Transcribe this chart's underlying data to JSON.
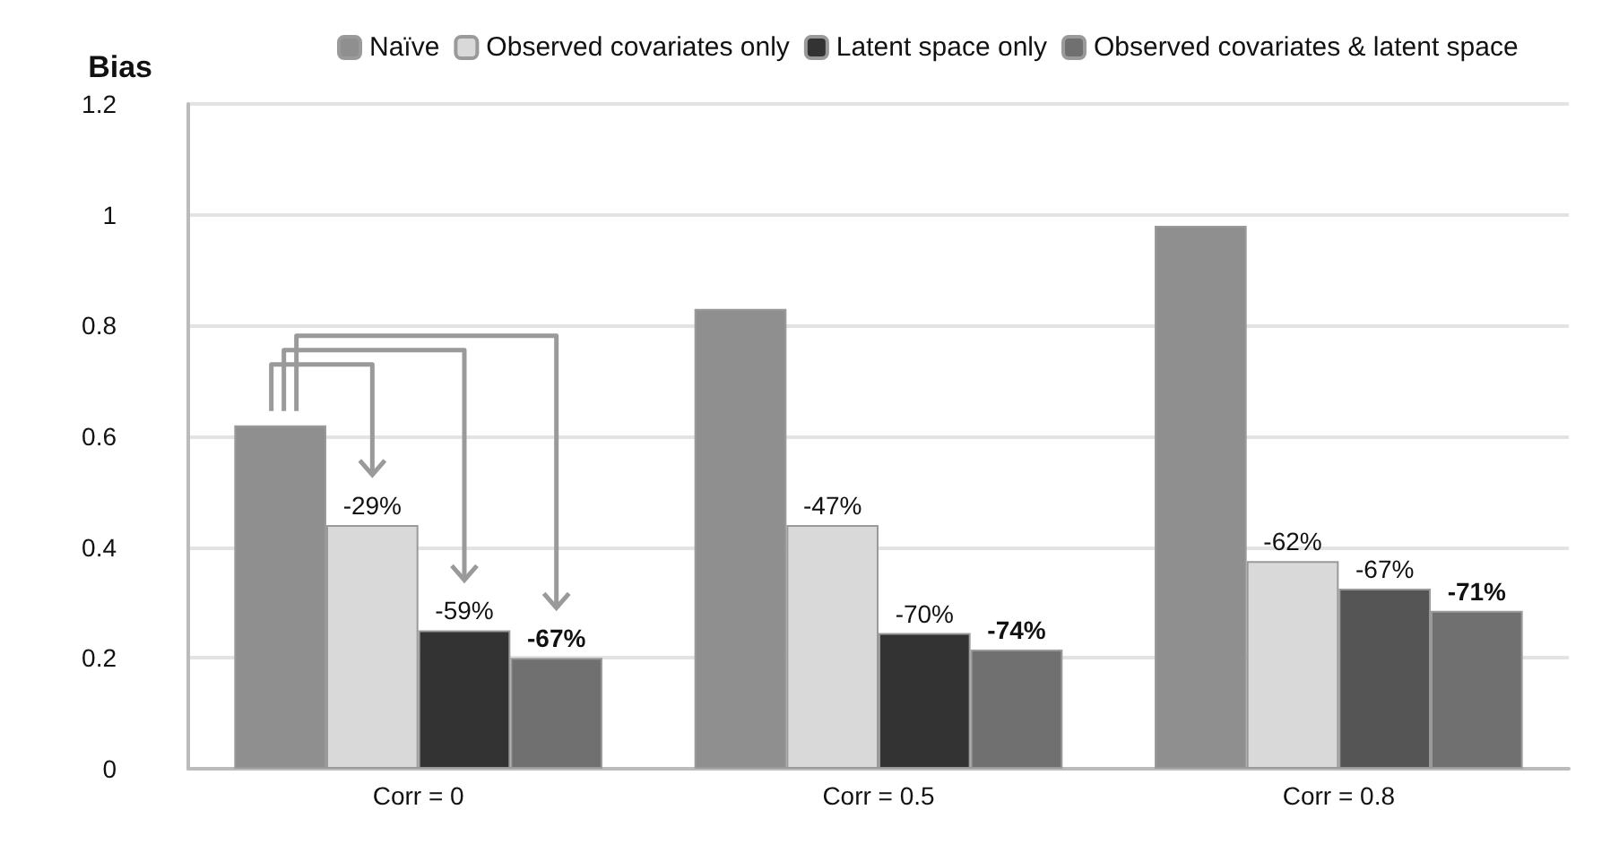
{
  "chart_data": {
    "type": "bar",
    "ylabel": "Bias",
    "categories": [
      "Corr = 0",
      "Corr = 0.5",
      "Corr = 0.8"
    ],
    "series": [
      {
        "name": "Naïve",
        "color": "#8f8f8f",
        "values": [
          0.62,
          0.83,
          0.98
        ]
      },
      {
        "name": "Observed covariates only",
        "color": "#d9d9d9",
        "values": [
          0.44,
          0.44,
          0.375
        ]
      },
      {
        "name": "Latent space only",
        "color": "#333333",
        "colors": [
          "#333333",
          "#333333",
          "#555555"
        ],
        "values": [
          0.25,
          0.245,
          0.325
        ]
      },
      {
        "name": "Observed covariates & latent space",
        "color": "#707070",
        "values": [
          0.2,
          0.215,
          0.285
        ]
      }
    ],
    "annotations": [
      "-29%",
      "-59%",
      "-67%",
      "-47%",
      "-70%",
      "-74%",
      "-62%",
      "-67%",
      "-71%"
    ],
    "ylim": [
      0,
      1.2
    ],
    "yticks": [
      0,
      0.2,
      0.4,
      0.6,
      0.8,
      1,
      1.2
    ],
    "grid": "y",
    "legend": "top"
  }
}
